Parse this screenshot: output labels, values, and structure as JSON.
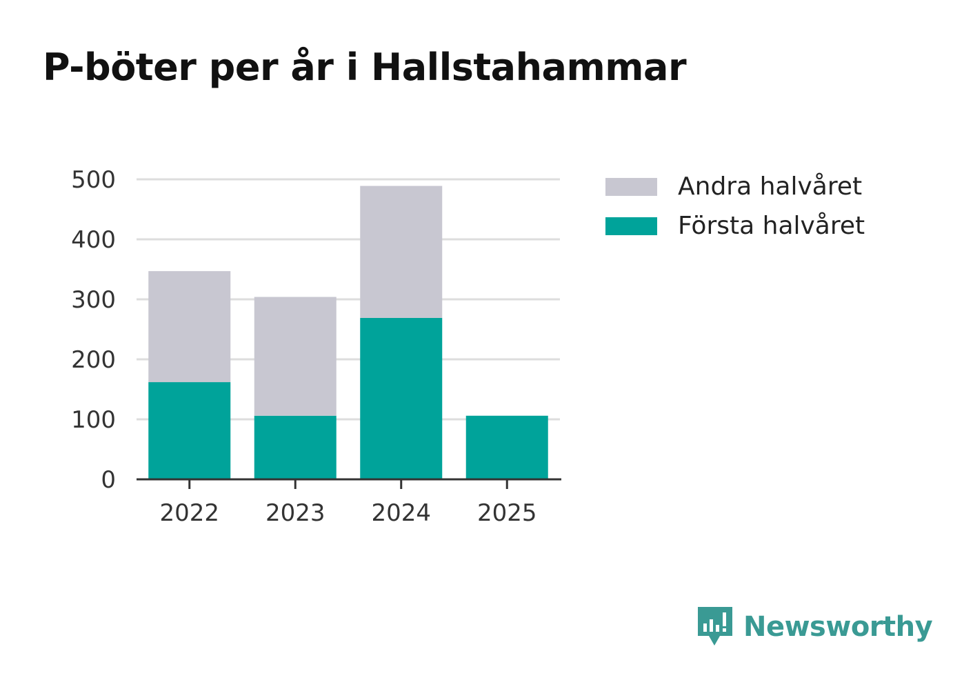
{
  "title": "P-böter per år i Hallstahammar",
  "chart_data": {
    "type": "bar",
    "stacked": true,
    "categories": [
      "2022",
      "2023",
      "2024",
      "2025"
    ],
    "series": [
      {
        "name": "Första halvåret",
        "color": "#00a39a",
        "values": [
          162,
          106,
          269,
          106
        ]
      },
      {
        "name": "Andra halvåret",
        "color": "#c8c7d1",
        "values": [
          185,
          198,
          220,
          0
        ]
      }
    ],
    "ylim": [
      0,
      500
    ],
    "yticks": [
      0,
      100,
      200,
      300,
      400,
      500
    ],
    "grid": true,
    "legend": [
      "Andra halvåret",
      "Första halvåret"
    ],
    "legend_position": "top-right"
  },
  "legend": {
    "items": [
      {
        "label": "Andra halvåret",
        "color": "#c8c7d1"
      },
      {
        "label": "Första halvåret",
        "color": "#00a39a"
      }
    ]
  },
  "brand": {
    "name": "Newsworthy",
    "color": "#3a9a94",
    "icon": "newsworthy-logo-icon"
  }
}
